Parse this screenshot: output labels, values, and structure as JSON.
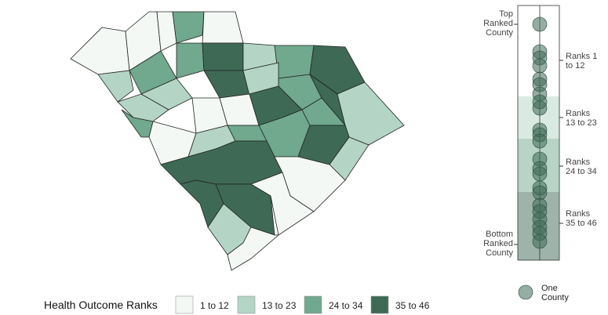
{
  "legend": {
    "title": "Health Outcome Ranks",
    "items": [
      {
        "label": "1 to 12",
        "color": "#f3f8f5"
      },
      {
        "label": "13 to 23",
        "color": "#b4d5c6"
      },
      {
        "label": "24 to 34",
        "color": "#70a98d"
      },
      {
        "label": "35 to 46",
        "color": "#3e6a55"
      }
    ]
  },
  "strip": {
    "top_label": "Top Ranked County",
    "bottom_label": "Bottom Ranked County",
    "groups": [
      "Ranks 1 to 12",
      "Ranks 13 to 23",
      "Ranks 24 to 34",
      "Ranks 35 to 46"
    ],
    "marker_label": "One County"
  }
}
